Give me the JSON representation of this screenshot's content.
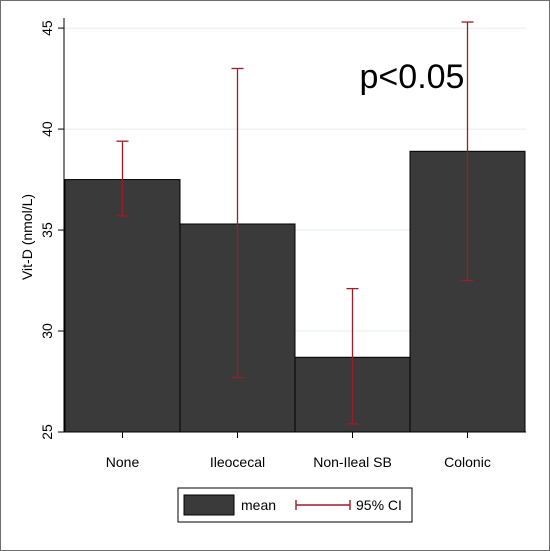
{
  "chart_data": {
    "type": "bar",
    "categories": [
      "None",
      "Ileocecal",
      "Non-Ileal SB",
      "Colonic"
    ],
    "series": [
      {
        "name": "mean",
        "values": [
          37.5,
          35.3,
          28.7,
          38.9
        ]
      }
    ],
    "ci": [
      {
        "lower": 35.7,
        "upper": 39.4
      },
      {
        "lower": 27.7,
        "upper": 43.0
      },
      {
        "lower": 25.4,
        "upper": 32.1
      },
      {
        "lower": 32.5,
        "upper": 45.3
      }
    ],
    "ci_label": "95% CI",
    "ylabel": "Vit-D (nmol/L)",
    "xlabel": "",
    "ylim": [
      25,
      45.5
    ],
    "yticks": [
      25,
      30,
      35,
      40,
      45
    ],
    "grid": "horizontal",
    "legend_position": "bottom",
    "annotation": "p<0.05",
    "colors": {
      "bar": "#3a3a3a",
      "bar_edge": "#000000",
      "ci": "#9b1c2a",
      "grid": "#e6ecef"
    }
  }
}
